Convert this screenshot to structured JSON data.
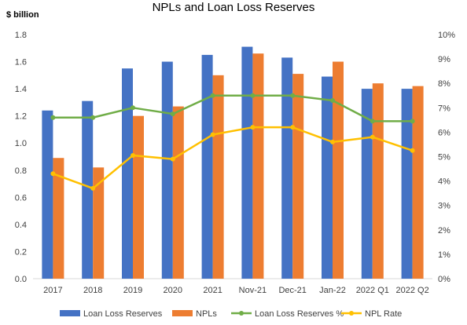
{
  "chart_data": {
    "type": "bar",
    "title": "NPLs and Loan Loss Reserves",
    "ylabel_left": "$ billion",
    "categories": [
      "2017",
      "2018",
      "2019",
      "2020",
      "2021",
      "Nov-21",
      "Dec-21",
      "Jan-22",
      "2022 Q1",
      "2022 Q2"
    ],
    "left_axis": {
      "min": 0,
      "max": 1.8,
      "ticks": [
        "0.0",
        "0.2",
        "0.4",
        "0.6",
        "0.8",
        "1.0",
        "1.2",
        "1.4",
        "1.6",
        "1.8"
      ]
    },
    "right_axis": {
      "min": 0,
      "max": 10,
      "ticks": [
        "0%",
        "1%",
        "2%",
        "3%",
        "4%",
        "5%",
        "6%",
        "7%",
        "8%",
        "9%",
        "10%"
      ]
    },
    "grid": false,
    "legend_position": "bottom",
    "series": [
      {
        "name": "Loan Loss Reserves",
        "type": "bar",
        "axis": "left",
        "color": "#4472C4",
        "values": [
          1.24,
          1.31,
          1.55,
          1.6,
          1.65,
          1.71,
          1.63,
          1.49,
          1.4,
          1.4
        ]
      },
      {
        "name": "NPLs",
        "type": "bar",
        "axis": "left",
        "color": "#ED7D31",
        "values": [
          0.89,
          0.82,
          1.2,
          1.27,
          1.5,
          1.66,
          1.51,
          1.6,
          1.44,
          1.42
        ]
      },
      {
        "name": "Loan Loss Reserves %",
        "type": "line",
        "axis": "right",
        "color": "#70AD47",
        "values": [
          6.6,
          6.6,
          7.0,
          6.75,
          7.5,
          7.5,
          7.5,
          7.3,
          6.45,
          6.45
        ]
      },
      {
        "name": "NPL Rate",
        "type": "line",
        "axis": "right",
        "color": "#FFC000",
        "values": [
          4.3,
          3.7,
          5.05,
          4.9,
          5.9,
          6.2,
          6.2,
          5.6,
          5.8,
          5.25
        ]
      }
    ]
  }
}
